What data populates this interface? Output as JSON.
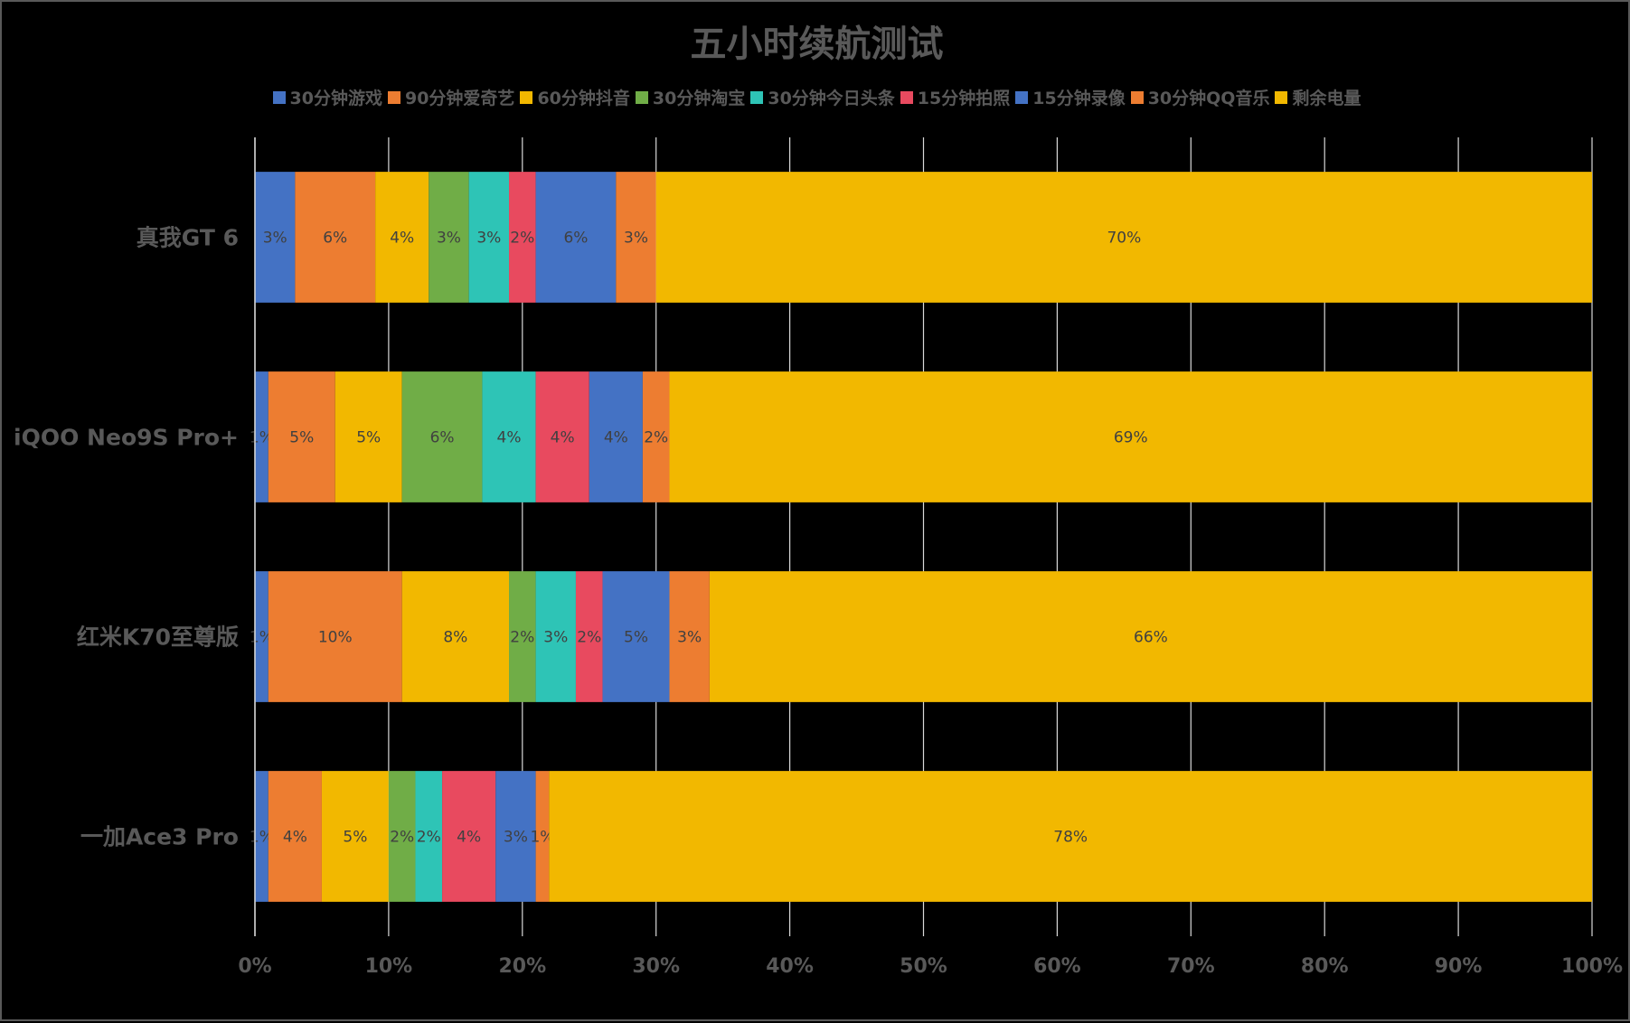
{
  "chart_data": {
    "type": "bar",
    "orientation": "horizontal",
    "stacked": "percent",
    "title": "五小时续航测试",
    "categories": [
      "真我GT 6",
      "iQOO Neo9S Pro+",
      "红米K70至尊版",
      "一加Ace3 Pro"
    ],
    "series": [
      {
        "name": "30分钟游戏",
        "color": "#4472C4",
        "values": [
          3,
          1,
          1,
          1
        ]
      },
      {
        "name": "90分钟爱奇艺",
        "color": "#ED7D31",
        "values": [
          6,
          5,
          10,
          4
        ]
      },
      {
        "name": "60分钟抖音",
        "color": "#F2B800",
        "values": [
          4,
          5,
          8,
          5
        ]
      },
      {
        "name": "30分钟淘宝",
        "color": "#70AD47",
        "values": [
          3,
          6,
          2,
          2
        ]
      },
      {
        "name": "30分钟今日头条",
        "color": "#2EC4B6",
        "values": [
          3,
          4,
          3,
          2
        ]
      },
      {
        "name": "15分钟拍照",
        "color": "#E84A5F",
        "values": [
          2,
          4,
          2,
          4
        ]
      },
      {
        "name": "15分钟录像",
        "color": "#4472C4",
        "values": [
          6,
          4,
          5,
          3
        ]
      },
      {
        "name": "30分钟QQ音乐",
        "color": "#ED7D31",
        "values": [
          3,
          2,
          3,
          1
        ]
      },
      {
        "name": "剩余电量",
        "color": "#F2B800",
        "values": [
          70,
          69,
          66,
          78
        ]
      }
    ],
    "data_label_suffix": "%",
    "xlim": [
      0,
      100
    ],
    "x_ticks": [
      "0%",
      "10%",
      "20%",
      "30%",
      "40%",
      "50%",
      "60%",
      "70%",
      "80%",
      "90%",
      "100%"
    ],
    "grid": true,
    "legend_position": "top"
  }
}
